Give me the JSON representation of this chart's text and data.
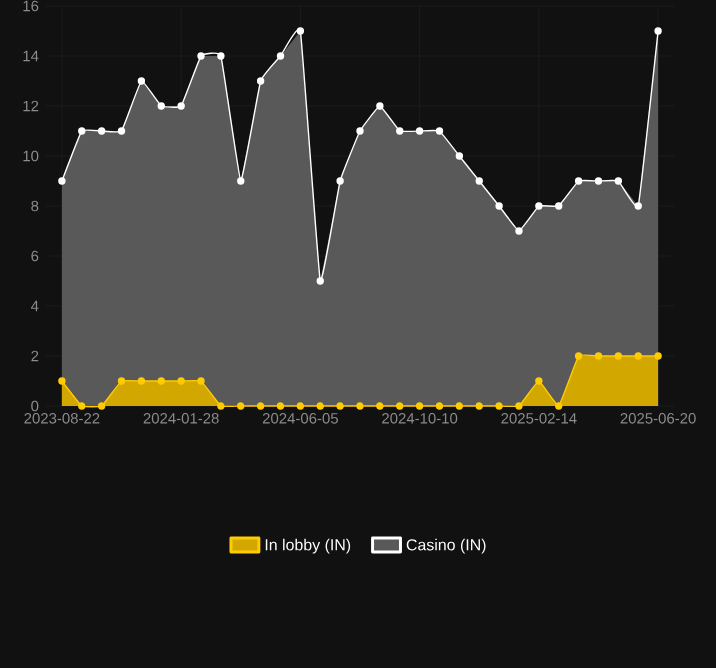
{
  "chart_data": {
    "type": "area",
    "categories": [
      "2023-08-22",
      null,
      null,
      null,
      null,
      null,
      "2024-01-28",
      null,
      null,
      null,
      null,
      null,
      "2024-06-05",
      null,
      null,
      null,
      null,
      null,
      "2024-10-10",
      null,
      null,
      null,
      null,
      null,
      "2025-02-14",
      null,
      null,
      null,
      null,
      null,
      "2025-06-20"
    ],
    "series": [
      {
        "name": "In lobby (IN)",
        "color": "#ffcc00",
        "values": [
          1,
          0,
          0,
          1,
          1,
          1,
          1,
          1,
          0,
          0,
          0,
          0,
          0,
          0,
          0,
          0,
          0,
          0,
          0,
          0,
          0,
          0,
          0,
          0,
          1,
          0,
          2,
          2,
          2,
          2,
          2
        ]
      },
      {
        "name": "Casino (IN)",
        "color": "#ffffff",
        "values": [
          9,
          11,
          11,
          11,
          13,
          12,
          12,
          14,
          14,
          9,
          13,
          14,
          15,
          5,
          9,
          11,
          12,
          11,
          11,
          11,
          10,
          9,
          8,
          7,
          8,
          8,
          9,
          9,
          9,
          8,
          15
        ]
      }
    ],
    "ylim": [
      0,
      16
    ],
    "yticks": [
      0,
      2,
      4,
      6,
      8,
      10,
      12,
      14,
      16
    ],
    "grid": true,
    "legend": "bottom",
    "marker": "circle",
    "line_style": "solid"
  }
}
